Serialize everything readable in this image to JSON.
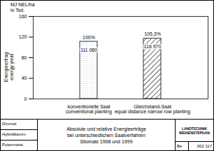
{
  "chart_data": {
    "type": "bar",
    "title": "Absolute und relative Energieerträge\nbei unterschiedlichen Saatverfahren\nSilomais 1998 und 1999",
    "y_unit_label": "MJ NEL/ha\nin Tsd.",
    "ylabel": "Energieertrag\nenergy yield",
    "categories": [
      "konventionelle Saat\nconventional planting",
      "Gleichstand-Saat\nequal distance narrow row planting"
    ],
    "values": [
      111.08,
      116.97
    ],
    "value_labels": [
      "111 080",
      "116 970"
    ],
    "data_labels": true,
    "annotations": [
      "100%",
      "105,3%"
    ],
    "ylim": [
      0,
      160
    ],
    "yticks": [
      0,
      40,
      80,
      120,
      160
    ],
    "grid": false
  },
  "footer": {
    "left": [
      "Dimmel",
      "Hybridkamm",
      "Potenmeist"
    ],
    "logo": "LANDTECHNIK\nWEIHENSTEPHAN",
    "author": "Be",
    "number": "002 117"
  }
}
